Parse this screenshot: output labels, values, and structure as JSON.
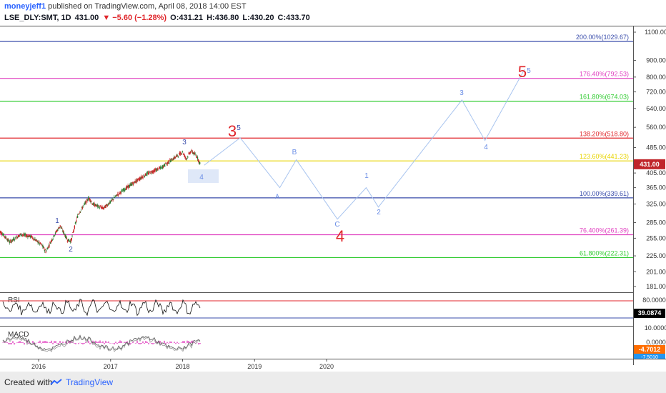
{
  "header": {
    "user": "moneyjeff1",
    "published": "published on TradingView.com, April 08, 2018 14:00 EST",
    "symbol": "LSE_DLY:SMT, 1D",
    "last": "431.00",
    "change": "▼ −5.60 (−1.28%)",
    "open": "O:431.21",
    "high": "H:436.80",
    "low": "L:430.20",
    "close": "C:433.70"
  },
  "footer": {
    "created": "Created with",
    "brand": "TradingView"
  },
  "colors": {
    "price_badge": "#c0262b",
    "rsi_line": "#e0262b",
    "blue_line": "#3a4dab",
    "macd_badge": "#ff6d00",
    "macd_signal_badge": "#2196f3"
  },
  "chart_data": [
    {
      "type": "line",
      "title": "LSE_DLY:SMT, 1D",
      "y_axis_ticks": [
        1100,
        900,
        800,
        720,
        640,
        560,
        485,
        405,
        365,
        325,
        285,
        255,
        225,
        201,
        181
      ],
      "x_axis_ticks": [
        "2016",
        "2017",
        "2018",
        "2019",
        "2020"
      ],
      "current_price": "431.00",
      "fib_levels": [
        {
          "label": "200.00%(1029.67)",
          "value": 1029.67,
          "color": "#3a4dab"
        },
        {
          "label": "176.40%(792.53)",
          "value": 792.53,
          "color": "#e040c0"
        },
        {
          "label": "161.80%(674.03)",
          "value": 674.03,
          "color": "#33cc33"
        },
        {
          "label": "138.20%(518.80)",
          "value": 518.8,
          "color": "#e0262b"
        },
        {
          "label": "123.60%(441.23)",
          "value": 441.23,
          "color": "#e8d400"
        },
        {
          "label": "100.00%(339.61)",
          "value": 339.61,
          "color": "#3a4dab"
        },
        {
          "label": "76.400%(261.39)",
          "value": 261.39,
          "color": "#e040c0"
        },
        {
          "label": "61.800%(222.31)",
          "value": 222.31,
          "color": "#33cc33"
        }
      ],
      "wave_labels": [
        "1",
        "2",
        "3",
        "4",
        "3",
        "5",
        "A",
        "B",
        "C",
        "4",
        "1",
        "2",
        "3",
        "4",
        "5",
        "5"
      ],
      "projection_path": [
        {
          "x": 2018.3,
          "y": 428
        },
        {
          "x": 2018.8,
          "y": 520
        },
        {
          "x": 2019.35,
          "y": 365
        },
        {
          "x": 2019.58,
          "y": 445
        },
        {
          "x": 2020.15,
          "y": 292
        },
        {
          "x": 2020.55,
          "y": 365
        },
        {
          "x": 2020.72,
          "y": 318
        },
        {
          "x": 2021.88,
          "y": 680
        },
        {
          "x": 2022.2,
          "y": 510
        },
        {
          "x": 2022.75,
          "y": 845
        }
      ]
    },
    {
      "type": "line",
      "title": "RSI",
      "y_axis_ticks": [
        80.0
      ],
      "current_value": "39.0874"
    },
    {
      "type": "line",
      "title": "MACD",
      "y_axis_ticks": [
        10.0,
        0.0
      ],
      "current_value": "-4.7012",
      "signal_value": "-7.5010"
    }
  ]
}
